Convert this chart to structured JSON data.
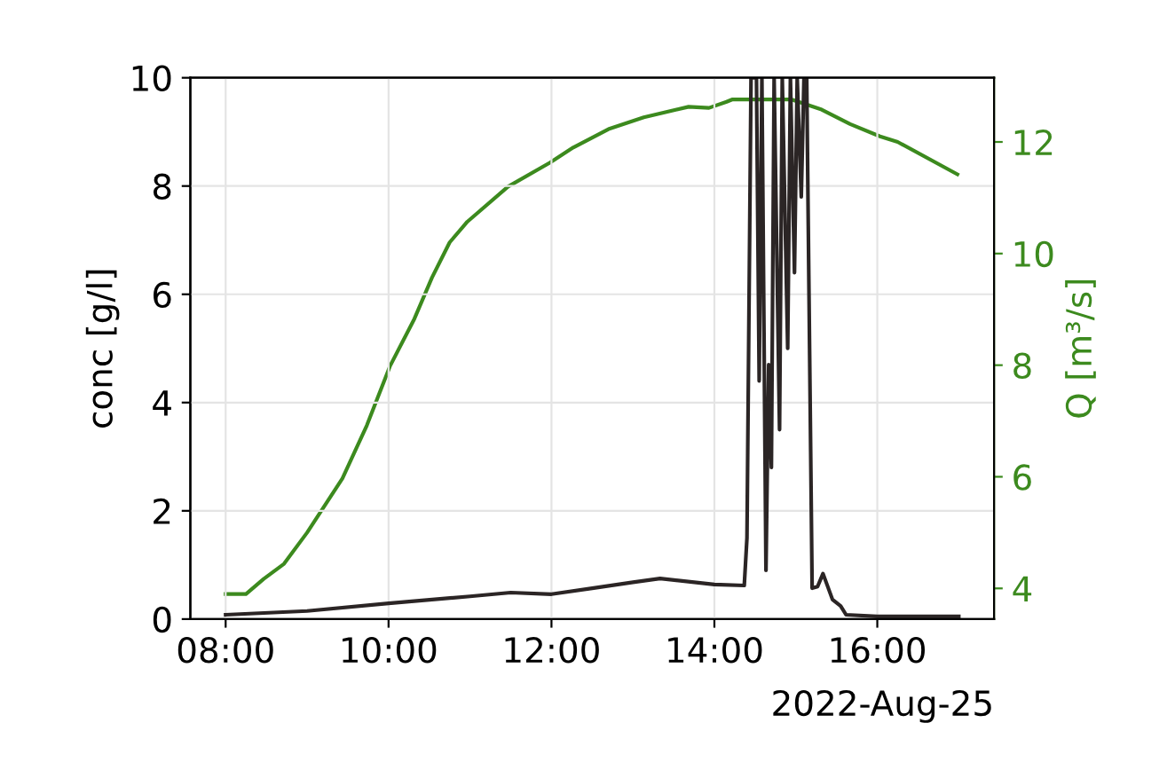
{
  "chart_data": {
    "type": "line",
    "ylabel": "conc [g/l]",
    "y2label": "Q [m³/s]",
    "annotations": [
      "2022-Aug-25"
    ],
    "xlim": [
      "2022-08-25T07:34",
      "2022-08-25T17:26"
    ],
    "xticks": [
      {
        "value": "2022-08-25T08:00",
        "label": "08:00"
      },
      {
        "value": "2022-08-25T10:00",
        "label": "10:00"
      },
      {
        "value": "2022-08-25T12:00",
        "label": "12:00"
      },
      {
        "value": "2022-08-25T14:00",
        "label": "14:00"
      },
      {
        "value": "2022-08-25T16:00",
        "label": "16:00"
      }
    ],
    "ylim": [
      0,
      10
    ],
    "yticks": [
      0,
      2,
      4,
      6,
      8,
      10
    ],
    "y2lim": [
      3.45,
      13.15
    ],
    "y2ticks": [
      4,
      6,
      8,
      10,
      12
    ],
    "grid": true,
    "marker": "none",
    "line_style": "solid",
    "series": [
      {
        "color": "#2b2525",
        "x": [
          "2022-08-25T08:00",
          "2022-08-25T09:00",
          "2022-08-25T10:00",
          "2022-08-25T11:00",
          "2022-08-25T11:30",
          "2022-08-25T12:00",
          "2022-08-25T12:30",
          "2022-08-25T13:00",
          "2022-08-25T13:20",
          "2022-08-25T14:00",
          "2022-08-25T14:22",
          "2022-08-25T14:24",
          "2022-08-25T14:27",
          "2022-08-25T14:31",
          "2022-08-25T14:33",
          "2022-08-25T14:35",
          "2022-08-25T14:38",
          "2022-08-25T14:40",
          "2022-08-25T14:42",
          "2022-08-25T14:44",
          "2022-08-25T14:48",
          "2022-08-25T14:50",
          "2022-08-25T14:54",
          "2022-08-25T14:56",
          "2022-08-25T14:59",
          "2022-08-25T15:01",
          "2022-08-25T15:04",
          "2022-08-25T15:06",
          "2022-08-25T15:08",
          "2022-08-25T15:12",
          "2022-08-25T15:16",
          "2022-08-25T15:20",
          "2022-08-25T15:27",
          "2022-08-25T15:33",
          "2022-08-25T15:37",
          "2022-08-25T16:00",
          "2022-08-25T17:00"
        ],
        "values": [
          0.08,
          0.15,
          0.29,
          0.42,
          0.49,
          0.46,
          0.57,
          0.68,
          0.75,
          0.64,
          0.62,
          1.5,
          10,
          10,
          4.4,
          10,
          0.9,
          4.7,
          2.8,
          10,
          3.5,
          10,
          5.0,
          10,
          6.4,
          10,
          7.8,
          10,
          10,
          0.57,
          0.6,
          0.84,
          0.36,
          0.24,
          0.08,
          0.05,
          0.05
        ]
      },
      {
        "color": "#3c8a1e",
        "axis": "y2",
        "x": [
          "2022-08-25T08:00",
          "2022-08-25T08:15",
          "2022-08-25T08:28",
          "2022-08-25T08:43",
          "2022-08-25T09:00",
          "2022-08-25T09:26",
          "2022-08-25T09:44",
          "2022-08-25T10:01",
          "2022-08-25T10:19",
          "2022-08-25T10:32",
          "2022-08-25T10:45",
          "2022-08-25T10:58",
          "2022-08-25T11:28",
          "2022-08-25T11:59",
          "2022-08-25T12:16",
          "2022-08-25T12:42",
          "2022-08-25T13:08",
          "2022-08-25T13:41",
          "2022-08-25T13:56",
          "2022-08-25T14:09",
          "2022-08-25T14:13",
          "2022-08-25T14:57",
          "2022-08-25T15:19",
          "2022-08-25T15:40",
          "2022-08-25T16:02",
          "2022-08-25T16:15",
          "2022-08-25T16:59"
        ],
        "values": [
          3.9,
          3.9,
          4.17,
          4.44,
          5.0,
          5.97,
          6.92,
          7.98,
          8.83,
          9.57,
          10.2,
          10.57,
          11.2,
          11.63,
          11.9,
          12.23,
          12.44,
          12.63,
          12.61,
          12.72,
          12.76,
          12.76,
          12.58,
          12.32,
          12.1,
          12.0,
          11.42
        ]
      }
    ]
  }
}
